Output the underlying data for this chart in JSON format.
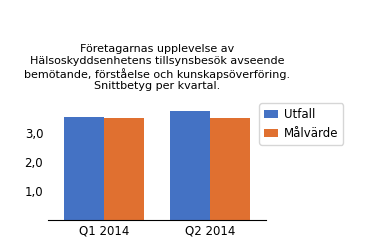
{
  "title": "Företagarnas upplevelse av\nHälsoskyddsenhetens tillsynsbesök avseende\nbemötande, förståelse och kunskapsöverföring.\nSnittbetyg per kvartal.",
  "categories": [
    "Q1 2014",
    "Q2 2014"
  ],
  "utfall": [
    3.56,
    3.76
  ],
  "malvarde": [
    3.5,
    3.5
  ],
  "bar_color_utfall": "#4472C4",
  "bar_color_malvarde": "#E07030",
  "legend_utfall": "Utfall",
  "legend_malvarde": "Målvärde",
  "ylim": [
    0,
    4.3
  ],
  "yticks": [
    1.0,
    2.0,
    3.0
  ],
  "ytick_labels": [
    "1,0",
    "2,0",
    "3,0"
  ],
  "bar_width": 0.32,
  "title_fontsize": 8.0,
  "tick_fontsize": 8.5,
  "legend_fontsize": 8.5,
  "background_color": "#ffffff"
}
